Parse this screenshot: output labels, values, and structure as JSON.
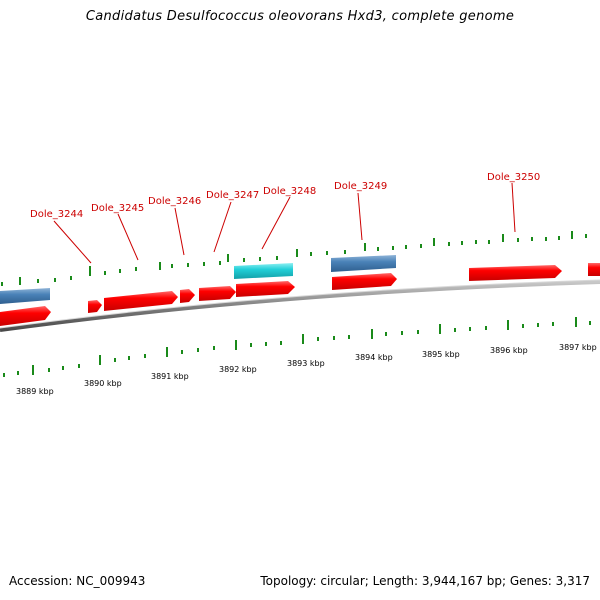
{
  "title": "Candidatus Desulfococcus oleovorans Hxd3, complete genome",
  "footer": {
    "accession": "Accession: NC_009943",
    "summary": "Topology: circular; Length: 3,944,167 bp; Genes: 3,317"
  },
  "colors": {
    "backbone": "#7a7a7a",
    "gene_forward": "#ff0000",
    "gene_blue": "#3f78ad",
    "gene_cyan": "#1fcfd6",
    "tick": "#1a8a1a",
    "label": "#cc0000"
  },
  "scale_labels": [
    "3889 kbp",
    "3890 kbp",
    "3891 kbp",
    "3892 kbp",
    "3893 kbp",
    "3894 kbp",
    "3895 kbp",
    "3896 kbp",
    "3897 kbp"
  ],
  "gene_labels": [
    "Dole_3244",
    "Dole_3245",
    "Dole_3246",
    "Dole_3247",
    "Dole_3248",
    "Dole_3249",
    "Dole_3250"
  ]
}
